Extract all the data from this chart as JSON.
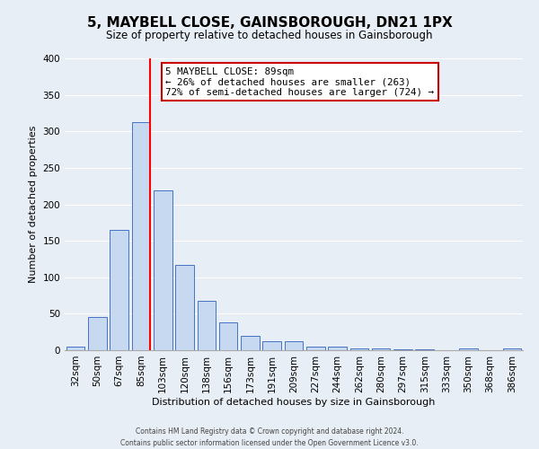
{
  "title": "5, MAYBELL CLOSE, GAINSBOROUGH, DN21 1PX",
  "subtitle": "Size of property relative to detached houses in Gainsborough",
  "xlabel": "Distribution of detached houses by size in Gainsborough",
  "ylabel": "Number of detached properties",
  "bin_labels": [
    "32sqm",
    "50sqm",
    "67sqm",
    "85sqm",
    "103sqm",
    "120sqm",
    "138sqm",
    "156sqm",
    "173sqm",
    "191sqm",
    "209sqm",
    "227sqm",
    "244sqm",
    "262sqm",
    "280sqm",
    "297sqm",
    "315sqm",
    "333sqm",
    "350sqm",
    "368sqm",
    "386sqm"
  ],
  "bar_values": [
    5,
    46,
    165,
    313,
    219,
    117,
    68,
    38,
    20,
    12,
    12,
    5,
    5,
    2,
    2,
    1,
    1,
    0,
    2,
    0,
    2
  ],
  "bar_color": "#c6d9f1",
  "bar_edge_color": "#4472c4",
  "vline_color": "red",
  "vline_bin_index": 3,
  "ylim": [
    0,
    400
  ],
  "yticks": [
    0,
    50,
    100,
    150,
    200,
    250,
    300,
    350,
    400
  ],
  "annotation_title": "5 MAYBELL CLOSE: 89sqm",
  "annotation_line1": "← 26% of detached houses are smaller (263)",
  "annotation_line2": "72% of semi-detached houses are larger (724) →",
  "annotation_box_color": "#ffffff",
  "annotation_box_edge": "#cc0000",
  "footer1": "Contains HM Land Registry data © Crown copyright and database right 2024.",
  "footer2": "Contains public sector information licensed under the Open Government Licence v3.0.",
  "bg_color": "#e8eef5",
  "plot_bg_color": "#e8eef5",
  "grid_color": "#ffffff",
  "title_fontsize": 11,
  "subtitle_fontsize": 8.5,
  "axis_label_fontsize": 8,
  "tick_fontsize": 7.5,
  "footer_fontsize": 5.5
}
